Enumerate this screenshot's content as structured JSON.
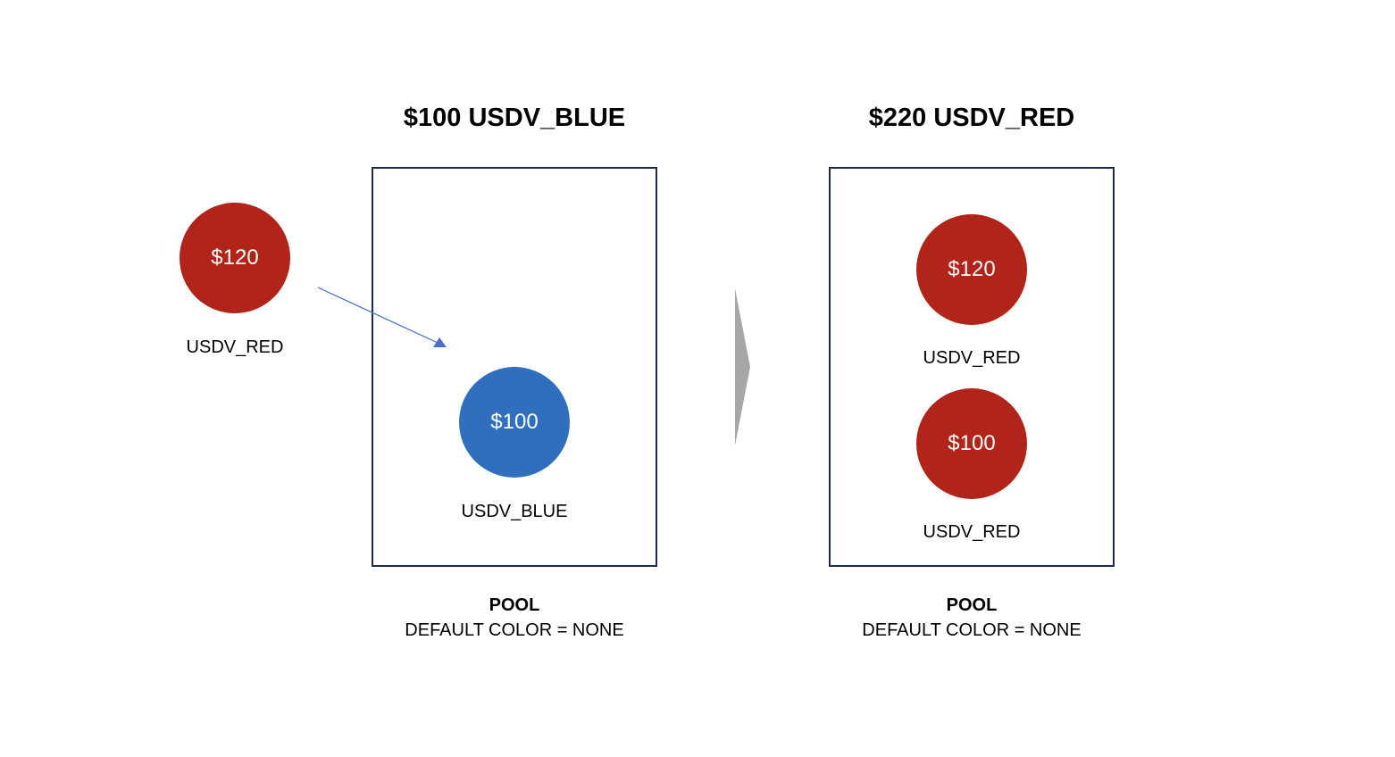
{
  "colors": {
    "red": "#b0241a",
    "blue": "#2f6fbd",
    "box_border": "#1f2a44",
    "arrow": "#4a6fc9",
    "chevron": "#a6a6a6"
  },
  "incoming_coin": {
    "value": "$120",
    "label": "USDV_RED"
  },
  "pool_before": {
    "title": "$100 USDV_BLUE",
    "coin": {
      "value": "$100",
      "label": "USDV_BLUE"
    },
    "caption_name": "POOL",
    "caption_default": "DEFAULT COLOR = NONE"
  },
  "pool_after": {
    "title": "$220 USDV_RED",
    "coins": [
      {
        "value": "$120",
        "label": "USDV_RED"
      },
      {
        "value": "$100",
        "label": "USDV_RED"
      }
    ],
    "caption_name": "POOL",
    "caption_default": "DEFAULT COLOR = NONE"
  },
  "icons": {
    "transfer_arrow": "arrow-icon",
    "transition": "chevron-right-icon"
  }
}
